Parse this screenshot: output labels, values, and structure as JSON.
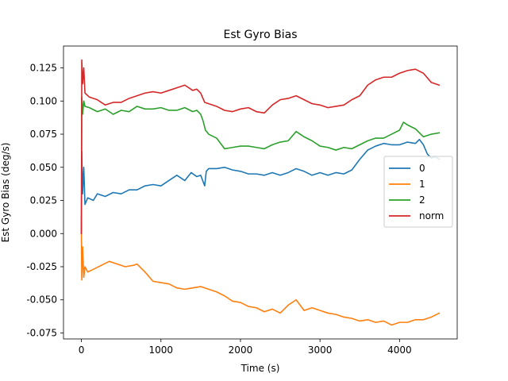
{
  "chart_data": {
    "type": "line",
    "title": "Est Gyro Bias",
    "xlabel": "Time (s)",
    "ylabel": "Est Gyro Bias (deg/s)",
    "xlim": [
      -225,
      4725
    ],
    "ylim": [
      -0.0795,
      0.1415
    ],
    "xticks": [
      0,
      1000,
      2000,
      3000,
      4000
    ],
    "yticks": [
      -0.075,
      -0.05,
      -0.025,
      0.0,
      0.025,
      0.05,
      0.075,
      0.1,
      0.125
    ],
    "grid": false,
    "legend_position": "center-right",
    "series": [
      {
        "name": "0",
        "color": "#1f77b4",
        "points": [
          [
            0,
            0.0
          ],
          [
            5,
            0.062
          ],
          [
            15,
            0.03
          ],
          [
            30,
            0.05
          ],
          [
            45,
            0.022
          ],
          [
            80,
            0.027
          ],
          [
            150,
            0.025
          ],
          [
            200,
            0.03
          ],
          [
            300,
            0.028
          ],
          [
            400,
            0.031
          ],
          [
            500,
            0.03
          ],
          [
            600,
            0.033
          ],
          [
            700,
            0.033
          ],
          [
            800,
            0.036
          ],
          [
            900,
            0.037
          ],
          [
            1000,
            0.036
          ],
          [
            1100,
            0.04
          ],
          [
            1200,
            0.044
          ],
          [
            1300,
            0.04
          ],
          [
            1380,
            0.046
          ],
          [
            1450,
            0.043
          ],
          [
            1500,
            0.044
          ],
          [
            1550,
            0.036
          ],
          [
            1570,
            0.047
          ],
          [
            1600,
            0.049
          ],
          [
            1700,
            0.049
          ],
          [
            1800,
            0.05
          ],
          [
            1900,
            0.048
          ],
          [
            2000,
            0.047
          ],
          [
            2100,
            0.045
          ],
          [
            2200,
            0.045
          ],
          [
            2300,
            0.044
          ],
          [
            2400,
            0.046
          ],
          [
            2500,
            0.044
          ],
          [
            2600,
            0.046
          ],
          [
            2700,
            0.049
          ],
          [
            2800,
            0.047
          ],
          [
            2900,
            0.044
          ],
          [
            3000,
            0.046
          ],
          [
            3100,
            0.044
          ],
          [
            3200,
            0.046
          ],
          [
            3300,
            0.045
          ],
          [
            3400,
            0.048
          ],
          [
            3500,
            0.056
          ],
          [
            3600,
            0.063
          ],
          [
            3700,
            0.066
          ],
          [
            3800,
            0.068
          ],
          [
            3900,
            0.067
          ],
          [
            4000,
            0.067
          ],
          [
            4100,
            0.069
          ],
          [
            4200,
            0.068
          ],
          [
            4250,
            0.071
          ],
          [
            4300,
            0.067
          ],
          [
            4350,
            0.06
          ],
          [
            4400,
            0.057
          ],
          [
            4450,
            0.058
          ],
          [
            4500,
            0.056
          ]
        ]
      },
      {
        "name": "1",
        "color": "#ff7f0e",
        "points": [
          [
            0,
            0.0
          ],
          [
            5,
            -0.035
          ],
          [
            15,
            -0.01
          ],
          [
            30,
            -0.033
          ],
          [
            45,
            -0.025
          ],
          [
            80,
            -0.029
          ],
          [
            150,
            -0.027
          ],
          [
            250,
            -0.024
          ],
          [
            350,
            -0.021
          ],
          [
            450,
            -0.023
          ],
          [
            550,
            -0.025
          ],
          [
            650,
            -0.024
          ],
          [
            700,
            -0.023
          ],
          [
            800,
            -0.029
          ],
          [
            900,
            -0.036
          ],
          [
            1000,
            -0.037
          ],
          [
            1100,
            -0.038
          ],
          [
            1200,
            -0.041
          ],
          [
            1300,
            -0.042
          ],
          [
            1400,
            -0.041
          ],
          [
            1500,
            -0.04
          ],
          [
            1600,
            -0.042
          ],
          [
            1700,
            -0.044
          ],
          [
            1800,
            -0.047
          ],
          [
            1900,
            -0.051
          ],
          [
            2000,
            -0.052
          ],
          [
            2100,
            -0.055
          ],
          [
            2200,
            -0.056
          ],
          [
            2300,
            -0.059
          ],
          [
            2400,
            -0.057
          ],
          [
            2500,
            -0.06
          ],
          [
            2600,
            -0.054
          ],
          [
            2700,
            -0.05
          ],
          [
            2800,
            -0.058
          ],
          [
            2900,
            -0.056
          ],
          [
            3000,
            -0.058
          ],
          [
            3100,
            -0.06
          ],
          [
            3200,
            -0.061
          ],
          [
            3300,
            -0.063
          ],
          [
            3400,
            -0.064
          ],
          [
            3500,
            -0.066
          ],
          [
            3600,
            -0.065
          ],
          [
            3700,
            -0.067
          ],
          [
            3800,
            -0.066
          ],
          [
            3900,
            -0.069
          ],
          [
            4000,
            -0.067
          ],
          [
            4100,
            -0.067
          ],
          [
            4200,
            -0.065
          ],
          [
            4300,
            -0.065
          ],
          [
            4400,
            -0.063
          ],
          [
            4500,
            -0.06
          ]
        ]
      },
      {
        "name": "2",
        "color": "#2ca02c",
        "points": [
          [
            0,
            0.0
          ],
          [
            5,
            0.103
          ],
          [
            15,
            0.09
          ],
          [
            30,
            0.1
          ],
          [
            45,
            0.096
          ],
          [
            100,
            0.095
          ],
          [
            200,
            0.092
          ],
          [
            300,
            0.094
          ],
          [
            400,
            0.09
          ],
          [
            500,
            0.093
          ],
          [
            600,
            0.092
          ],
          [
            700,
            0.096
          ],
          [
            800,
            0.094
          ],
          [
            900,
            0.094
          ],
          [
            1000,
            0.095
          ],
          [
            1100,
            0.093
          ],
          [
            1200,
            0.093
          ],
          [
            1300,
            0.095
          ],
          [
            1400,
            0.092
          ],
          [
            1450,
            0.093
          ],
          [
            1500,
            0.09
          ],
          [
            1530,
            0.085
          ],
          [
            1560,
            0.078
          ],
          [
            1600,
            0.075
          ],
          [
            1700,
            0.072
          ],
          [
            1800,
            0.064
          ],
          [
            1900,
            0.065
          ],
          [
            2000,
            0.066
          ],
          [
            2100,
            0.066
          ],
          [
            2200,
            0.065
          ],
          [
            2300,
            0.064
          ],
          [
            2400,
            0.067
          ],
          [
            2500,
            0.069
          ],
          [
            2600,
            0.07
          ],
          [
            2700,
            0.077
          ],
          [
            2800,
            0.073
          ],
          [
            2900,
            0.07
          ],
          [
            3000,
            0.066
          ],
          [
            3100,
            0.065
          ],
          [
            3200,
            0.063
          ],
          [
            3300,
            0.065
          ],
          [
            3400,
            0.064
          ],
          [
            3500,
            0.067
          ],
          [
            3600,
            0.07
          ],
          [
            3700,
            0.072
          ],
          [
            3800,
            0.072
          ],
          [
            3900,
            0.075
          ],
          [
            4000,
            0.078
          ],
          [
            4050,
            0.084
          ],
          [
            4100,
            0.082
          ],
          [
            4200,
            0.079
          ],
          [
            4300,
            0.073
          ],
          [
            4400,
            0.075
          ],
          [
            4500,
            0.076
          ]
        ]
      },
      {
        "name": "norm",
        "color": "#d62728",
        "points": [
          [
            0,
            0.0
          ],
          [
            5,
            0.131
          ],
          [
            15,
            0.113
          ],
          [
            30,
            0.125
          ],
          [
            45,
            0.106
          ],
          [
            100,
            0.103
          ],
          [
            200,
            0.101
          ],
          [
            300,
            0.097
          ],
          [
            400,
            0.099
          ],
          [
            500,
            0.099
          ],
          [
            600,
            0.102
          ],
          [
            700,
            0.104
          ],
          [
            800,
            0.106
          ],
          [
            900,
            0.107
          ],
          [
            1000,
            0.106
          ],
          [
            1100,
            0.108
          ],
          [
            1200,
            0.11
          ],
          [
            1300,
            0.112
          ],
          [
            1400,
            0.108
          ],
          [
            1450,
            0.109
          ],
          [
            1500,
            0.106
          ],
          [
            1550,
            0.099
          ],
          [
            1600,
            0.098
          ],
          [
            1700,
            0.096
          ],
          [
            1800,
            0.093
          ],
          [
            1900,
            0.092
          ],
          [
            2000,
            0.094
          ],
          [
            2100,
            0.095
          ],
          [
            2200,
            0.092
          ],
          [
            2300,
            0.091
          ],
          [
            2400,
            0.097
          ],
          [
            2500,
            0.101
          ],
          [
            2600,
            0.102
          ],
          [
            2700,
            0.104
          ],
          [
            2800,
            0.101
          ],
          [
            2900,
            0.098
          ],
          [
            3000,
            0.097
          ],
          [
            3100,
            0.095
          ],
          [
            3200,
            0.096
          ],
          [
            3300,
            0.097
          ],
          [
            3400,
            0.101
          ],
          [
            3500,
            0.104
          ],
          [
            3600,
            0.112
          ],
          [
            3700,
            0.116
          ],
          [
            3800,
            0.118
          ],
          [
            3900,
            0.118
          ],
          [
            4000,
            0.121
          ],
          [
            4100,
            0.123
          ],
          [
            4200,
            0.124
          ],
          [
            4300,
            0.121
          ],
          [
            4400,
            0.114
          ],
          [
            4500,
            0.112
          ]
        ]
      }
    ]
  }
}
